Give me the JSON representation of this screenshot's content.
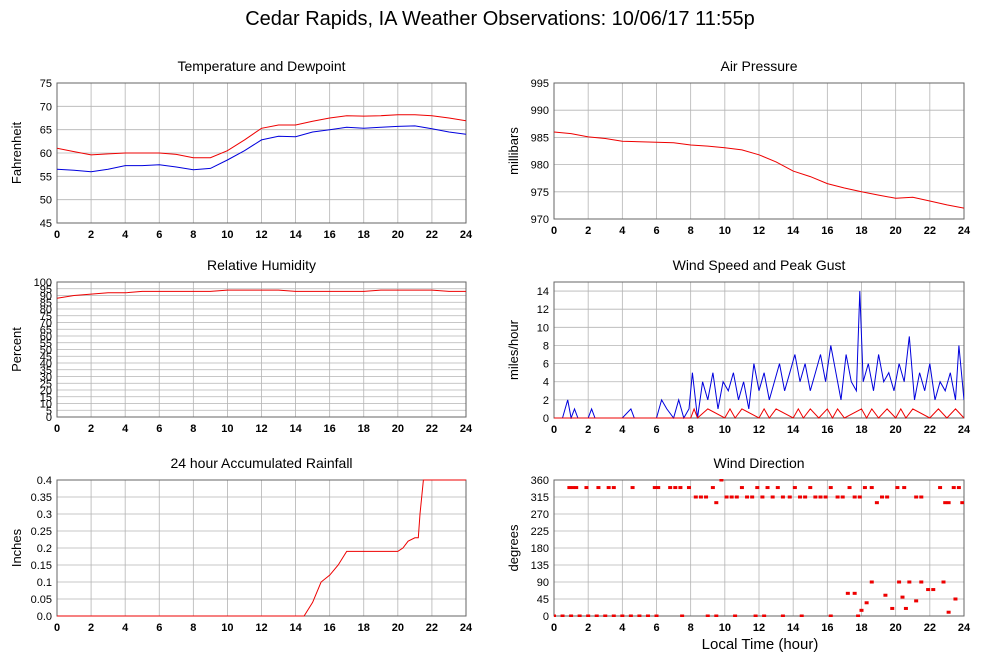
{
  "page": {
    "title": "Cedar Rapids, IA Weather Observations: 10/06/17 11:55p",
    "xlabel": "Local Time (hour)"
  },
  "colors": {
    "red": "#ee0000",
    "blue": "#0000dd",
    "grid": "#b4b4b4",
    "frame": "#666666"
  },
  "chart_data": [
    {
      "type": "line",
      "title": "Temperature and Dewpoint",
      "ylabel": "Fahrenheit",
      "xlim": [
        0,
        24
      ],
      "ylim": [
        45,
        75
      ],
      "x_ticks": [
        0,
        2,
        4,
        6,
        8,
        10,
        12,
        14,
        16,
        18,
        20,
        22,
        24
      ],
      "y_ticks": [
        "45",
        "50",
        "55",
        "60",
        "65",
        "70",
        "75"
      ],
      "grid": true,
      "series": [
        {
          "color": "#ee0000",
          "x": [
            0,
            1,
            2,
            3,
            4,
            5,
            6,
            7,
            8,
            9,
            10,
            11,
            12,
            13,
            14,
            15,
            16,
            17,
            18,
            19,
            20,
            21,
            22,
            23,
            24
          ],
          "y": [
            61,
            60.3,
            59.6,
            59.8,
            60,
            60,
            60,
            59.7,
            59,
            59,
            60.5,
            62.8,
            65.3,
            66,
            66,
            66.8,
            67.5,
            68,
            67.9,
            68,
            68.2,
            68.2,
            68,
            67.5,
            66.9
          ]
        },
        {
          "color": "#0000dd",
          "x": [
            0,
            1,
            2,
            3,
            4,
            5,
            6,
            7,
            8,
            9,
            10,
            11,
            12,
            13,
            14,
            15,
            16,
            17,
            18,
            19,
            20,
            21,
            22,
            23,
            24
          ],
          "y": [
            56.5,
            56.3,
            56,
            56.5,
            57.3,
            57.3,
            57.5,
            57,
            56.4,
            56.7,
            58.5,
            60.5,
            62.8,
            63.6,
            63.5,
            64.5,
            65,
            65.5,
            65.3,
            65.5,
            65.7,
            65.8,
            65.2,
            64.5,
            64
          ]
        }
      ]
    },
    {
      "type": "line",
      "title": "Air Pressure",
      "ylabel": "millibars",
      "xlim": [
        0,
        24
      ],
      "ylim": [
        970,
        995
      ],
      "x_ticks": [
        0,
        2,
        4,
        6,
        8,
        10,
        12,
        14,
        16,
        18,
        20,
        22,
        24
      ],
      "y_ticks": [
        "970",
        "975",
        "980",
        "985",
        "990",
        "995"
      ],
      "grid": true,
      "series": [
        {
          "color": "#ee0000",
          "x": [
            0,
            1,
            2,
            3,
            4,
            5,
            6,
            7,
            8,
            9,
            10,
            11,
            12,
            13,
            14,
            15,
            16,
            17,
            18,
            19,
            20,
            21,
            22,
            23,
            24
          ],
          "y": [
            986,
            985.7,
            985.1,
            984.8,
            984.3,
            984.2,
            984.1,
            984,
            983.6,
            983.4,
            983.1,
            982.7,
            981.8,
            980.5,
            978.8,
            977.8,
            976.5,
            975.7,
            975,
            974.4,
            973.8,
            974,
            973.3,
            972.6,
            972
          ]
        }
      ]
    },
    {
      "type": "line",
      "title": "Relative Humidity",
      "ylabel": "Percent",
      "xlim": [
        0,
        24
      ],
      "ylim": [
        0,
        100
      ],
      "x_ticks": [
        0,
        2,
        4,
        6,
        8,
        10,
        12,
        14,
        16,
        18,
        20,
        22,
        24
      ],
      "y_ticks": [
        "0",
        "5",
        "10",
        "15",
        "20",
        "25",
        "30",
        "35",
        "40",
        "45",
        "50",
        "55",
        "60",
        "65",
        "70",
        "75",
        "80",
        "85",
        "90",
        "95",
        "100"
      ],
      "grid": true,
      "series": [
        {
          "color": "#ee0000",
          "x": [
            0,
            1,
            2,
            3,
            4,
            5,
            6,
            7,
            8,
            9,
            10,
            11,
            12,
            13,
            14,
            15,
            16,
            17,
            18,
            19,
            20,
            21,
            22,
            23,
            24
          ],
          "y": [
            88,
            90,
            91,
            92,
            92,
            93,
            93,
            93,
            93,
            93,
            94,
            94,
            94,
            94,
            93,
            93,
            93,
            93,
            93,
            94,
            94,
            94,
            94,
            93,
            93
          ]
        }
      ]
    },
    {
      "type": "line",
      "title": "Wind Speed and Peak Gust",
      "ylabel": "miles/hour",
      "xlim": [
        0,
        24
      ],
      "ylim": [
        0,
        15
      ],
      "x_ticks": [
        0,
        2,
        4,
        6,
        8,
        10,
        12,
        14,
        16,
        18,
        20,
        22,
        24
      ],
      "y_ticks": [
        "0",
        "2",
        "4",
        "6",
        "8",
        "10",
        "12",
        "14"
      ],
      "grid": true,
      "series": [
        {
          "color": "#0000dd",
          "x": [
            0,
            0.5,
            0.8,
            1,
            1.2,
            1.4,
            1.6,
            2,
            2.2,
            2.4,
            3,
            4,
            4.5,
            4.7,
            5,
            6,
            6.3,
            6.6,
            7,
            7.3,
            7.6,
            7.9,
            8.1,
            8.4,
            8.7,
            9,
            9.3,
            9.6,
            9.9,
            10.2,
            10.5,
            10.8,
            11.1,
            11.4,
            11.7,
            12,
            12.3,
            12.6,
            12.9,
            13.2,
            13.5,
            13.8,
            14.1,
            14.4,
            14.7,
            15,
            15.3,
            15.6,
            15.9,
            16.2,
            16.5,
            16.8,
            17.1,
            17.4,
            17.7,
            17.9,
            18.1,
            18.4,
            18.7,
            19,
            19.3,
            19.6,
            19.9,
            20.2,
            20.5,
            20.8,
            21.1,
            21.4,
            21.7,
            22,
            22.3,
            22.6,
            22.9,
            23.2,
            23.5,
            23.7,
            24
          ],
          "y": [
            0,
            0,
            2,
            0,
            1,
            0,
            0,
            0,
            1,
            0,
            0,
            0,
            1,
            0,
            0,
            0,
            2,
            1,
            0,
            2,
            0,
            1,
            5,
            0,
            4,
            2,
            5,
            1,
            4,
            3,
            5,
            2,
            4,
            1,
            6,
            3,
            5,
            2,
            4,
            6,
            3,
            5,
            7,
            4,
            6,
            3,
            5,
            7,
            4,
            8,
            5,
            2,
            7,
            4,
            3,
            14,
            4,
            6,
            3,
            7,
            4,
            5,
            3,
            6,
            4,
            9,
            2,
            5,
            3,
            6,
            2,
            4,
            3,
            5,
            2,
            8,
            2
          ]
        },
        {
          "color": "#ee0000",
          "x": [
            0,
            8,
            8.2,
            8.4,
            9,
            10,
            10.3,
            10.6,
            11,
            12,
            12.3,
            12.6,
            13,
            14,
            14.3,
            14.6,
            15,
            15.5,
            16,
            16.3,
            16.6,
            17,
            18,
            18.3,
            18.6,
            19,
            19.5,
            20,
            20.3,
            20.6,
            21,
            22,
            22.5,
            23,
            23.5,
            24
          ],
          "y": [
            0,
            0,
            1,
            0,
            1,
            0,
            1,
            0,
            1,
            0,
            1,
            0,
            1,
            0,
            1,
            0,
            1,
            0,
            1,
            0,
            1,
            0,
            1,
            0,
            1,
            0,
            1,
            0,
            1,
            0,
            1,
            0,
            1,
            0,
            1,
            0
          ]
        }
      ]
    },
    {
      "type": "line",
      "title": "24 hour Accumulated Rainfall",
      "ylabel": "Inches",
      "xlim": [
        0,
        24
      ],
      "ylim": [
        0,
        0.4
      ],
      "x_ticks": [
        0,
        2,
        4,
        6,
        8,
        10,
        12,
        14,
        16,
        18,
        20,
        22,
        24
      ],
      "y_ticks": [
        "0.0",
        "0.05",
        "0.1",
        "0.15",
        "0.2",
        "0.25",
        "0.3",
        "0.35",
        "0.4"
      ],
      "grid": true,
      "series": [
        {
          "color": "#ee0000",
          "x": [
            0,
            14.5,
            15,
            15.5,
            16,
            16.5,
            17,
            17.5,
            18,
            19,
            20,
            20.3,
            20.6,
            21,
            21.2,
            21.3,
            21.5,
            21.6,
            24
          ],
          "y": [
            0,
            0,
            0.04,
            0.1,
            0.12,
            0.15,
            0.19,
            0.19,
            0.19,
            0.19,
            0.19,
            0.2,
            0.22,
            0.23,
            0.23,
            0.3,
            0.4,
            0.4,
            0.4
          ]
        }
      ]
    },
    {
      "type": "scatter",
      "title": "Wind Direction",
      "ylabel": "degrees",
      "xlabel": "Local Time (hour)",
      "xlim": [
        0,
        24
      ],
      "ylim": [
        0,
        360
      ],
      "x_ticks": [
        0,
        2,
        4,
        6,
        8,
        10,
        12,
        14,
        16,
        18,
        20,
        22,
        24
      ],
      "y_ticks": [
        "0",
        "45",
        "90",
        "135",
        "180",
        "225",
        "270",
        "315",
        "360"
      ],
      "grid": true,
      "series": [
        {
          "color": "#ee0000",
          "points": [
            [
              0.9,
              340
            ],
            [
              1.1,
              340
            ],
            [
              1.3,
              340
            ],
            [
              1.9,
              340
            ],
            [
              2.6,
              340
            ],
            [
              3.2,
              340
            ],
            [
              3.5,
              340
            ],
            [
              4.6,
              340
            ],
            [
              5.9,
              340
            ],
            [
              6.1,
              340
            ],
            [
              6.8,
              340
            ],
            [
              7.1,
              340
            ],
            [
              7.4,
              340
            ],
            [
              7.9,
              340
            ],
            [
              8.3,
              315
            ],
            [
              8.6,
              315
            ],
            [
              8.9,
              315
            ],
            [
              9.3,
              340
            ],
            [
              9.5,
              300
            ],
            [
              9.8,
              360
            ],
            [
              10.1,
              315
            ],
            [
              10.4,
              315
            ],
            [
              10.7,
              315
            ],
            [
              11,
              340
            ],
            [
              11.3,
              315
            ],
            [
              11.6,
              315
            ],
            [
              11.9,
              340
            ],
            [
              12.2,
              315
            ],
            [
              12.5,
              340
            ],
            [
              12.8,
              315
            ],
            [
              13.1,
              340
            ],
            [
              13.4,
              315
            ],
            [
              13.8,
              315
            ],
            [
              14.1,
              340
            ],
            [
              14.4,
              315
            ],
            [
              14.7,
              315
            ],
            [
              15,
              340
            ],
            [
              15.3,
              315
            ],
            [
              15.6,
              315
            ],
            [
              15.9,
              315
            ],
            [
              16.2,
              340
            ],
            [
              16.6,
              315
            ],
            [
              16.9,
              315
            ],
            [
              17.3,
              340
            ],
            [
              17.6,
              315
            ],
            [
              17.9,
              315
            ],
            [
              18.2,
              340
            ],
            [
              18.6,
              340
            ],
            [
              18.9,
              300
            ],
            [
              19.2,
              315
            ],
            [
              19.5,
              315
            ],
            [
              20.1,
              340
            ],
            [
              20.5,
              340
            ],
            [
              21.2,
              315
            ],
            [
              21.5,
              315
            ],
            [
              22.6,
              340
            ],
            [
              22.9,
              300
            ],
            [
              23.1,
              300
            ],
            [
              23.4,
              340
            ],
            [
              23.7,
              340
            ],
            [
              23.9,
              300
            ],
            [
              17.2,
              60
            ],
            [
              17.6,
              60
            ],
            [
              18,
              15
            ],
            [
              18.3,
              35
            ],
            [
              18.6,
              90
            ],
            [
              19.4,
              55
            ],
            [
              19.8,
              20
            ],
            [
              20.2,
              90
            ],
            [
              20.4,
              50
            ],
            [
              20.6,
              20
            ],
            [
              20.8,
              90
            ],
            [
              21.2,
              40
            ],
            [
              21.5,
              90
            ],
            [
              21.9,
              70
            ],
            [
              22.2,
              70
            ],
            [
              22.8,
              90
            ],
            [
              23.1,
              10
            ],
            [
              23.5,
              45
            ],
            [
              0,
              0
            ],
            [
              0.5,
              0
            ],
            [
              1,
              0
            ],
            [
              1.5,
              0
            ],
            [
              2,
              0
            ],
            [
              2.5,
              0
            ],
            [
              3,
              0
            ],
            [
              3.5,
              0
            ],
            [
              4,
              0
            ],
            [
              4.5,
              0
            ],
            [
              5,
              0
            ],
            [
              5.5,
              0
            ],
            [
              6,
              0
            ],
            [
              7.5,
              0
            ],
            [
              9,
              0
            ],
            [
              9.5,
              0
            ],
            [
              10.6,
              0
            ],
            [
              11.8,
              0
            ],
            [
              12.3,
              0
            ],
            [
              13.4,
              0
            ],
            [
              14.5,
              0
            ],
            [
              16.2,
              0
            ],
            [
              17.8,
              0
            ]
          ]
        }
      ]
    }
  ]
}
